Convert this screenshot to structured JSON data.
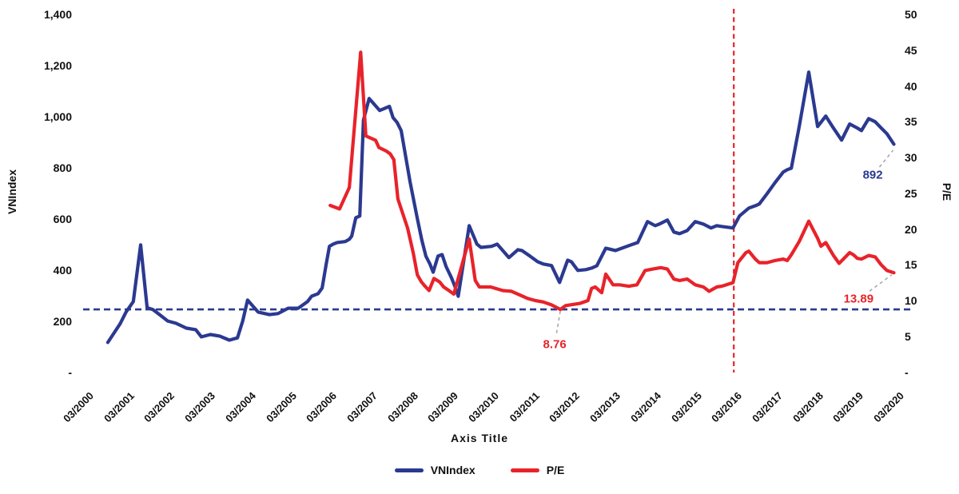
{
  "chart_data": {
    "type": "line",
    "title": "",
    "xlabel": "Axis Title",
    "left_axis": {
      "label": "VNIndex",
      "min": 0,
      "max": 1400,
      "ticks": [
        "1,400",
        "1,200",
        "1,000",
        "800",
        "600",
        "400",
        "200",
        "-"
      ]
    },
    "right_axis": {
      "label": "P/E",
      "min": 0,
      "max": 50,
      "ticks": [
        "50",
        "45",
        "40",
        "35",
        "30",
        "25",
        "20",
        "15",
        "10",
        "5",
        "-"
      ]
    },
    "x_ticks": [
      "03/2000",
      "03/2001",
      "03/2002",
      "03/2003",
      "03/2004",
      "03/2005",
      "03/2006",
      "03/2007",
      "03/2008",
      "03/2009",
      "03/2010",
      "03/2011",
      "03/2012",
      "03/2013",
      "03/2014",
      "03/2015",
      "03/2016",
      "03/2017",
      "03/2018",
      "03/2019",
      "03/2020"
    ],
    "grid": false,
    "legend_position": "bottom",
    "series": [
      {
        "name": "VNIndex",
        "axis": "left",
        "color": "#2b3990",
        "points": [
          [
            2000.55,
            116
          ],
          [
            2000.85,
            188
          ],
          [
            2001.0,
            235
          ],
          [
            2001.18,
            276
          ],
          [
            2001.36,
            498
          ],
          [
            2001.52,
            252
          ],
          [
            2001.66,
            245
          ],
          [
            2001.82,
            226
          ],
          [
            2002.03,
            200
          ],
          [
            2002.23,
            191
          ],
          [
            2002.49,
            172
          ],
          [
            2002.72,
            166
          ],
          [
            2002.86,
            138
          ],
          [
            2003.08,
            147
          ],
          [
            2003.31,
            141
          ],
          [
            2003.55,
            125
          ],
          [
            2003.75,
            134
          ],
          [
            2003.88,
            200
          ],
          [
            2004.0,
            282
          ],
          [
            2004.26,
            235
          ],
          [
            2004.54,
            225
          ],
          [
            2004.75,
            229
          ],
          [
            2005.0,
            250
          ],
          [
            2005.25,
            250
          ],
          [
            2005.48,
            276
          ],
          [
            2005.58,
            297
          ],
          [
            2005.74,
            307
          ],
          [
            2005.84,
            329
          ],
          [
            2005.94,
            423
          ],
          [
            2006.02,
            492
          ],
          [
            2006.11,
            501
          ],
          [
            2006.21,
            507
          ],
          [
            2006.41,
            511
          ],
          [
            2006.51,
            520
          ],
          [
            2006.57,
            532
          ],
          [
            2006.67,
            604
          ],
          [
            2006.77,
            611
          ],
          [
            2006.86,
            986
          ],
          [
            2007.0,
            1071
          ],
          [
            2007.26,
            1024
          ],
          [
            2007.5,
            1040
          ],
          [
            2007.59,
            996
          ],
          [
            2007.69,
            977
          ],
          [
            2007.79,
            945
          ],
          [
            2008.01,
            745
          ],
          [
            2008.19,
            601
          ],
          [
            2008.3,
            517
          ],
          [
            2008.4,
            454
          ],
          [
            2008.5,
            423
          ],
          [
            2008.58,
            391
          ],
          [
            2008.7,
            454
          ],
          [
            2008.8,
            460
          ],
          [
            2008.9,
            413
          ],
          [
            2009.03,
            370
          ],
          [
            2009.13,
            330
          ],
          [
            2009.2,
            297
          ],
          [
            2009.47,
            573
          ],
          [
            2009.66,
            501
          ],
          [
            2009.76,
            488
          ],
          [
            2010.02,
            492
          ],
          [
            2010.16,
            501
          ],
          [
            2010.45,
            448
          ],
          [
            2010.67,
            479
          ],
          [
            2010.77,
            476
          ],
          [
            2010.97,
            454
          ],
          [
            2011.16,
            432
          ],
          [
            2011.3,
            423
          ],
          [
            2011.5,
            417
          ],
          [
            2011.7,
            351
          ],
          [
            2011.9,
            438
          ],
          [
            2011.99,
            432
          ],
          [
            2012.15,
            398
          ],
          [
            2012.35,
            401
          ],
          [
            2012.49,
            407
          ],
          [
            2012.62,
            416
          ],
          [
            2012.84,
            485
          ],
          [
            2013.08,
            476
          ],
          [
            2013.41,
            495
          ],
          [
            2013.63,
            507
          ],
          [
            2013.87,
            589
          ],
          [
            2014.06,
            573
          ],
          [
            2014.16,
            579
          ],
          [
            2014.36,
            595
          ],
          [
            2014.52,
            548
          ],
          [
            2014.66,
            542
          ],
          [
            2014.85,
            554
          ],
          [
            2015.05,
            589
          ],
          [
            2015.25,
            579
          ],
          [
            2015.44,
            564
          ],
          [
            2015.58,
            573
          ],
          [
            2015.7,
            570
          ],
          [
            2015.98,
            564
          ],
          [
            2016.14,
            611
          ],
          [
            2016.37,
            642
          ],
          [
            2016.53,
            651
          ],
          [
            2016.63,
            658
          ],
          [
            2016.82,
            698
          ],
          [
            2017.02,
            742
          ],
          [
            2017.22,
            783
          ],
          [
            2017.32,
            792
          ],
          [
            2017.42,
            798
          ],
          [
            2017.62,
            965
          ],
          [
            2017.85,
            1174
          ],
          [
            2018.07,
            961
          ],
          [
            2018.27,
            1002
          ],
          [
            2018.46,
            955
          ],
          [
            2018.66,
            908
          ],
          [
            2018.86,
            971
          ],
          [
            2019.05,
            955
          ],
          [
            2019.15,
            945
          ],
          [
            2019.33,
            992
          ],
          [
            2019.49,
            980
          ],
          [
            2019.64,
            955
          ],
          [
            2019.78,
            933
          ],
          [
            2019.95,
            892
          ]
        ]
      },
      {
        "name": "P/E",
        "axis": "right",
        "color": "#e8232a",
        "points": [
          [
            2006.04,
            23.3
          ],
          [
            2006.27,
            22.8
          ],
          [
            2006.51,
            25.8
          ],
          [
            2006.79,
            44.7
          ],
          [
            2006.92,
            33.0
          ],
          [
            2007.16,
            32.4
          ],
          [
            2007.24,
            31.4
          ],
          [
            2007.42,
            30.9
          ],
          [
            2007.52,
            30.5
          ],
          [
            2007.61,
            29.7
          ],
          [
            2007.71,
            24.2
          ],
          [
            2007.95,
            20.1
          ],
          [
            2008.09,
            16.6
          ],
          [
            2008.19,
            13.6
          ],
          [
            2008.29,
            12.6
          ],
          [
            2008.38,
            12.0
          ],
          [
            2008.48,
            11.4
          ],
          [
            2008.6,
            13.1
          ],
          [
            2008.74,
            12.6
          ],
          [
            2008.84,
            11.9
          ],
          [
            2008.97,
            11.4
          ],
          [
            2009.09,
            10.9
          ],
          [
            2009.47,
            18.6
          ],
          [
            2009.62,
            12.8
          ],
          [
            2009.72,
            11.9
          ],
          [
            2010.0,
            11.9
          ],
          [
            2010.3,
            11.4
          ],
          [
            2010.51,
            11.3
          ],
          [
            2010.71,
            10.8
          ],
          [
            2010.91,
            10.3
          ],
          [
            2011.1,
            10.0
          ],
          [
            2011.3,
            9.8
          ],
          [
            2011.5,
            9.4
          ],
          [
            2011.72,
            8.76
          ],
          [
            2011.85,
            9.3
          ],
          [
            2012.2,
            9.6
          ],
          [
            2012.4,
            10.0
          ],
          [
            2012.49,
            11.7
          ],
          [
            2012.58,
            11.9
          ],
          [
            2012.74,
            11.1
          ],
          [
            2012.84,
            13.7
          ],
          [
            2013.02,
            12.2
          ],
          [
            2013.18,
            12.2
          ],
          [
            2013.41,
            12.0
          ],
          [
            2013.61,
            12.2
          ],
          [
            2013.81,
            14.2
          ],
          [
            2014.0,
            14.4
          ],
          [
            2014.2,
            14.6
          ],
          [
            2014.36,
            14.4
          ],
          [
            2014.52,
            13.0
          ],
          [
            2014.66,
            12.8
          ],
          [
            2014.85,
            13.0
          ],
          [
            2015.05,
            12.2
          ],
          [
            2015.25,
            11.9
          ],
          [
            2015.39,
            11.3
          ],
          [
            2015.58,
            11.9
          ],
          [
            2015.7,
            12.0
          ],
          [
            2015.98,
            12.5
          ],
          [
            2016.1,
            15.3
          ],
          [
            2016.3,
            16.7
          ],
          [
            2016.37,
            16.9
          ],
          [
            2016.53,
            15.8
          ],
          [
            2016.63,
            15.3
          ],
          [
            2016.82,
            15.3
          ],
          [
            2017.02,
            15.6
          ],
          [
            2017.22,
            15.8
          ],
          [
            2017.32,
            15.6
          ],
          [
            2017.42,
            16.4
          ],
          [
            2017.62,
            18.3
          ],
          [
            2017.85,
            21.1
          ],
          [
            2018.07,
            18.7
          ],
          [
            2018.15,
            17.6
          ],
          [
            2018.27,
            18.1
          ],
          [
            2018.46,
            16.3
          ],
          [
            2018.6,
            15.2
          ],
          [
            2018.86,
            16.7
          ],
          [
            2018.95,
            16.4
          ],
          [
            2019.05,
            15.9
          ],
          [
            2019.15,
            15.8
          ],
          [
            2019.33,
            16.3
          ],
          [
            2019.49,
            16.1
          ],
          [
            2019.64,
            15.0
          ],
          [
            2019.78,
            14.2
          ],
          [
            2019.95,
            13.89
          ]
        ]
      }
    ],
    "reference_lines": [
      {
        "id": "pe-min-hline",
        "type": "horizontal",
        "axis": "right",
        "value": 8.76,
        "color": "#2b3990",
        "style": "dashed"
      },
      {
        "id": "event-vline",
        "type": "vertical",
        "x": 2016.0,
        "x_label": "03/2016",
        "color": "#e8232a",
        "style": "dashed"
      }
    ],
    "annotations": [
      {
        "id": "pe-min",
        "text": "8.76",
        "color": "#e8232a",
        "axis": "right",
        "label_at": [
          2011.58,
          3.9
        ],
        "target": [
          2011.72,
          8.6
        ]
      },
      {
        "id": "vnindex-last",
        "text": "892",
        "color": "#2b3990",
        "axis": "left",
        "label_at": [
          2019.43,
          770
        ],
        "target": [
          2019.93,
          868
        ]
      },
      {
        "id": "pe-last",
        "text": "13.89",
        "color": "#e8232a",
        "axis": "right",
        "label_at": [
          2019.08,
          10.2
        ],
        "target": [
          2019.9,
          13.6
        ]
      }
    ],
    "legend": [
      {
        "label": "VNIndex",
        "color": "#2b3990"
      },
      {
        "label": "P/E",
        "color": "#e8232a"
      }
    ],
    "leader_color": "#a8a8a8"
  }
}
